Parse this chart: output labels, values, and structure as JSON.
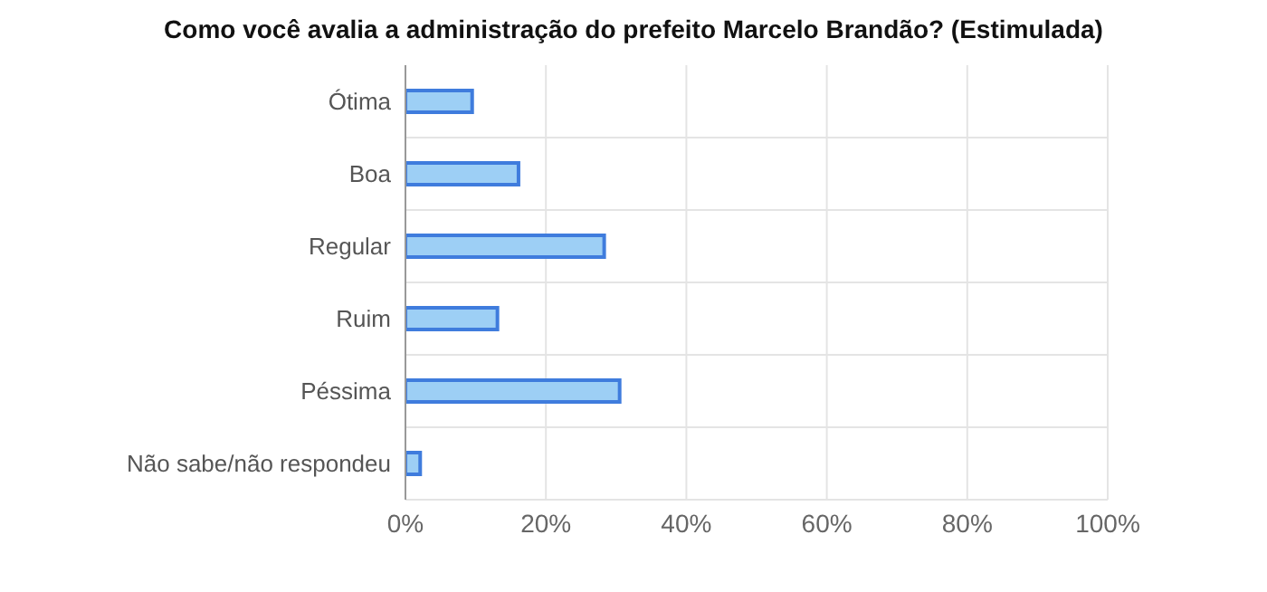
{
  "chart_data": {
    "type": "bar",
    "orientation": "horizontal",
    "title": "Como você avalia a administração do prefeito Marcelo Brandão? (Estimulada)",
    "categories": [
      "Ótima",
      "Boa",
      "Regular",
      "Ruim",
      "Péssima",
      "Não sabe/não respondeu"
    ],
    "values": [
      9.5,
      16.1,
      28.3,
      13.1,
      30.5,
      2.1
    ],
    "color": "#9dcff5",
    "xlim": [
      0,
      100
    ],
    "xticks": [
      {
        "value": 0,
        "label": "0%"
      },
      {
        "value": 20,
        "label": "20%"
      },
      {
        "value": 40,
        "label": "40%"
      },
      {
        "value": 60,
        "label": "60%"
      },
      {
        "value": 80,
        "label": "80%"
      },
      {
        "value": 100,
        "label": "100%"
      }
    ],
    "grid": true
  }
}
